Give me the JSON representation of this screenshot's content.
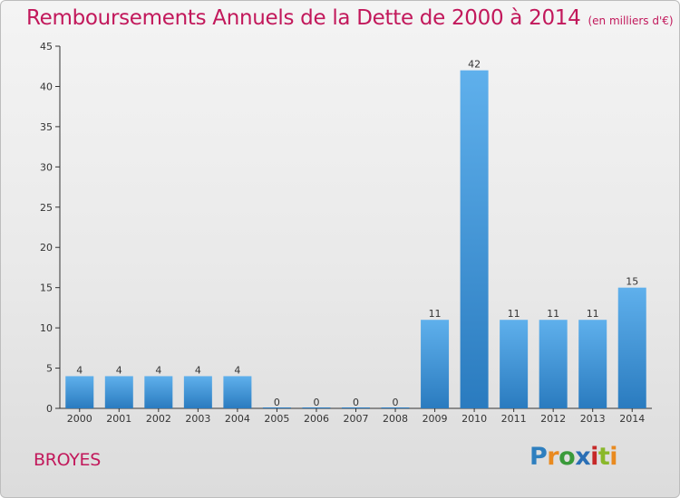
{
  "header": {
    "title": "Remboursements Annuels de la Dette de 2000 à 2014",
    "subtitle": "(en milliers d'€)"
  },
  "footer": {
    "commune": "BROYES",
    "logo": {
      "text": "Proxiti",
      "letter_colors": [
        "#2e7fbf",
        "#e98a1f",
        "#3a9a3a",
        "#2a6fb5",
        "#c62828",
        "#8ab82a",
        "#e98a1f"
      ]
    }
  },
  "colors": {
    "bar_top": "#5fb0ec",
    "bar_bottom": "#2a7bbf",
    "axis": "#333333",
    "title": "#c2185b"
  },
  "chart_data": {
    "type": "bar",
    "categories": [
      "2000",
      "2001",
      "2002",
      "2003",
      "2004",
      "2005",
      "2006",
      "2007",
      "2008",
      "2009",
      "2010",
      "2011",
      "2012",
      "2013",
      "2014"
    ],
    "values": [
      4,
      4,
      4,
      4,
      4,
      0,
      0,
      0,
      0,
      11,
      42,
      11,
      11,
      11,
      15
    ],
    "ylim": [
      0,
      45
    ],
    "yticks": [
      0,
      5,
      10,
      15,
      20,
      25,
      30,
      35,
      40,
      45
    ],
    "grid": false,
    "xlabel": "",
    "ylabel": ""
  }
}
